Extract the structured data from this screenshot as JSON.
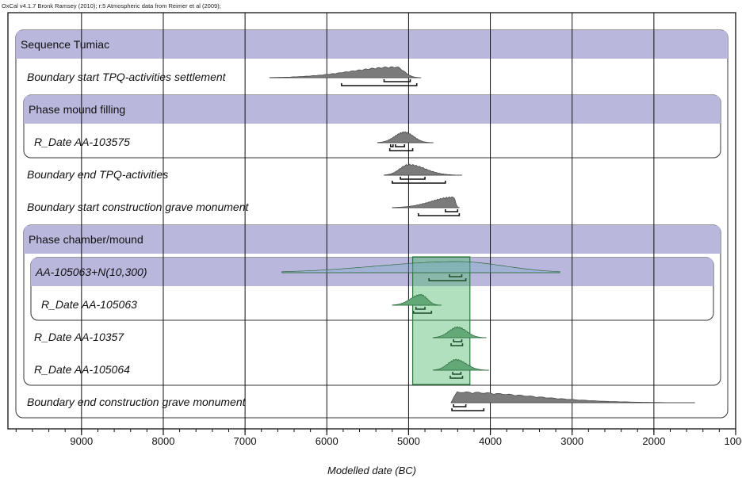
{
  "credit": "OxCal v4.1.7 Bronk Ramsey (2010); r:5 Atmospheric data from Reimer et al (2009);",
  "chart_data": {
    "type": "oxcal-multiplot",
    "xlabel": "Modelled date (BC)",
    "xlim": [
      9900,
      1000
    ],
    "xticks": [
      9000,
      8000,
      7000,
      6000,
      5000,
      4000,
      3000,
      2000,
      1000
    ],
    "minor_tick_step": 200,
    "highlight_range": [
      4950,
      4250
    ],
    "groups": [
      {
        "label": "Sequence Tumiac",
        "level": 0,
        "header_row": 0,
        "last_row": 11
      },
      {
        "label": "Phase mound filling",
        "level": 1,
        "header_row": 2,
        "last_row": 3
      },
      {
        "label": "Phase chamber/mound",
        "level": 1,
        "header_row": 6,
        "last_row": 10
      },
      {
        "label": "AA-105063+N(10,300)",
        "level": 2,
        "header_row": 7,
        "last_row": 8
      }
    ],
    "rows": [
      {
        "row": 0,
        "kind": "header"
      },
      {
        "row": 1,
        "kind": "item",
        "label": "Boundary start TPQ-activities settlement",
        "indent": 1,
        "extent": [
          6700,
          4850
        ],
        "mode": 5150,
        "hpd68": [
          [
            5300,
            4980
          ]
        ],
        "hpd95": [
          [
            5820,
            4900
          ]
        ],
        "green": false
      },
      {
        "row": 2,
        "kind": "header"
      },
      {
        "row": 3,
        "kind": "item",
        "label": "R_Date AA-103575",
        "indent": 2,
        "extent": [
          5380,
          4700
        ],
        "mode": 5050,
        "hpd68": [
          [
            5220,
            5190
          ],
          [
            5160,
            5050
          ]
        ],
        "hpd95": [
          [
            5230,
            4950
          ]
        ],
        "green": false
      },
      {
        "row": 4,
        "kind": "item",
        "label": "Boundary end TPQ-activities",
        "indent": 1,
        "extent": [
          5300,
          4350
        ],
        "mode": 5000,
        "hpd68": [
          [
            5100,
            4800
          ]
        ],
        "hpd95": [
          [
            5200,
            4550
          ]
        ],
        "green": false
      },
      {
        "row": 5,
        "kind": "item",
        "label": "Boundary start construction grave monument",
        "indent": 1,
        "extent": [
          5200,
          4380
        ],
        "mode": 4450,
        "hpd68": [
          [
            4550,
            4400
          ]
        ],
        "hpd95": [
          [
            4880,
            4380
          ]
        ],
        "green": false
      },
      {
        "row": 6,
        "kind": "header"
      },
      {
        "row": 7,
        "kind": "header",
        "extent": [
          6550,
          3150
        ],
        "mode": 4400,
        "hpd68": [
          [
            4500,
            4350
          ]
        ],
        "hpd95": [
          [
            4750,
            4300
          ]
        ],
        "green": true,
        "broad": true
      },
      {
        "row": 8,
        "kind": "item",
        "label": "R_Date AA-105063",
        "indent": 3,
        "extent": [
          5200,
          4600
        ],
        "mode": 4850,
        "hpd68": [
          [
            4910,
            4800
          ]
        ],
        "hpd95": [
          [
            4940,
            4720
          ]
        ],
        "green": true
      },
      {
        "row": 9,
        "kind": "item",
        "label": "R_Date AA-10357",
        "indent": 2,
        "extent": [
          4700,
          4050
        ],
        "mode": 4400,
        "hpd68": [
          [
            4450,
            4350
          ]
        ],
        "hpd95": [
          [
            4480,
            4340
          ]
        ],
        "green": true
      },
      {
        "row": 10,
        "kind": "item",
        "label": "R_Date AA-105064",
        "indent": 2,
        "extent": [
          4700,
          4020
        ],
        "mode": 4420,
        "hpd68": [
          [
            4460,
            4360
          ]
        ],
        "hpd95": [
          [
            4490,
            4340
          ]
        ],
        "green": true
      },
      {
        "row": 11,
        "kind": "item",
        "label": "Boundary end construction grave monument",
        "indent": 1,
        "extent": [
          4480,
          1500
        ],
        "mode": 4420,
        "hpd68": [
          [
            4450,
            4300
          ]
        ],
        "hpd95": [
          [
            4470,
            4080
          ]
        ],
        "green": false
      }
    ]
  }
}
